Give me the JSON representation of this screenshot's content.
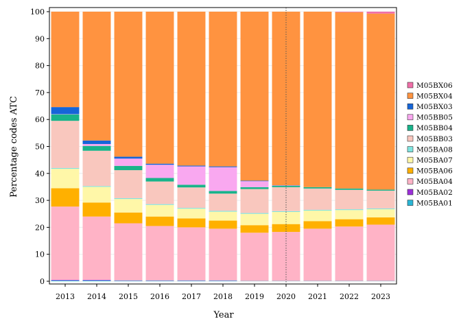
{
  "chart_data": {
    "type": "bar",
    "stacked": true,
    "xlabel": "Year",
    "ylabel": "Percentage codes ATC",
    "ylim": [
      0,
      100
    ],
    "yticks": [
      0,
      10,
      20,
      30,
      40,
      50,
      60,
      70,
      80,
      90,
      100
    ],
    "categories": [
      "2013",
      "2014",
      "2015",
      "2016",
      "2017",
      "2018",
      "2019",
      "2020",
      "2021",
      "2022",
      "2023"
    ],
    "reference_line": {
      "x": "2020",
      "style": "dotted"
    },
    "legend_position": "right",
    "grid": true,
    "series": [
      {
        "name": "M05BA01",
        "color": "#29B6D6",
        "values": [
          0.3,
          0.3,
          0.2,
          0.2,
          0.2,
          0.2,
          0.1,
          0.1,
          0.1,
          0.1,
          0.1
        ]
      },
      {
        "name": "M05BA02",
        "color": "#9B2FD9",
        "values": [
          0.2,
          0.2,
          0.1,
          0.1,
          0.1,
          0.1,
          0.0,
          0.0,
          0.0,
          0.0,
          0.0
        ]
      },
      {
        "name": "M05BA04",
        "color": "#FFB3C6",
        "values": [
          27.2,
          23.5,
          21.2,
          20.2,
          19.7,
          19.2,
          17.9,
          18.2,
          19.4,
          20.2,
          20.9
        ]
      },
      {
        "name": "M05BA06",
        "color": "#FFB000",
        "values": [
          6.8,
          5.2,
          4.0,
          3.5,
          3.3,
          3.0,
          2.8,
          2.9,
          2.8,
          2.7,
          2.7
        ]
      },
      {
        "name": "M05BA07",
        "color": "#FFF7A8",
        "values": [
          7.2,
          5.8,
          5.0,
          4.3,
          3.6,
          3.3,
          4.2,
          4.5,
          3.9,
          3.4,
          3.0
        ]
      },
      {
        "name": "M05BA08",
        "color": "#7FE5E0",
        "values": [
          0.3,
          0.3,
          0.3,
          0.3,
          0.3,
          0.3,
          0.3,
          0.3,
          0.3,
          0.3,
          0.3
        ]
      },
      {
        "name": "M05BB03",
        "color": "#F9C7BE",
        "values": [
          17.5,
          13.1,
          10.4,
          8.4,
          7.6,
          6.4,
          8.9,
          8.9,
          7.9,
          7.2,
          6.6
        ]
      },
      {
        "name": "M05BB04",
        "color": "#19B38A",
        "values": [
          2.4,
          1.8,
          1.6,
          1.3,
          1.0,
          1.0,
          0.7,
          0.5,
          0.5,
          0.5,
          0.4
        ]
      },
      {
        "name": "M05BB05",
        "color": "#F9A8F0",
        "values": [
          0.1,
          0.7,
          2.7,
          4.9,
          6.8,
          8.8,
          2.2,
          0.1,
          0.0,
          0.0,
          0.0
        ]
      },
      {
        "name": "M05BX03",
        "color": "#1565D8",
        "values": [
          2.6,
          1.3,
          0.7,
          0.4,
          0.3,
          0.3,
          0.2,
          0.1,
          0.0,
          0.0,
          0.0
        ]
      },
      {
        "name": "M05BX04",
        "color": "#FF9340",
        "values": [
          35.4,
          47.8,
          53.8,
          56.4,
          57.1,
          57.4,
          62.7,
          64.4,
          65.1,
          65.4,
          65.3
        ]
      },
      {
        "name": "M05BX06",
        "color": "#F06FA8",
        "values": [
          0.0,
          0.0,
          0.0,
          0.0,
          0.0,
          0.0,
          0.0,
          0.0,
          0.0,
          0.2,
          0.7
        ]
      }
    ]
  }
}
